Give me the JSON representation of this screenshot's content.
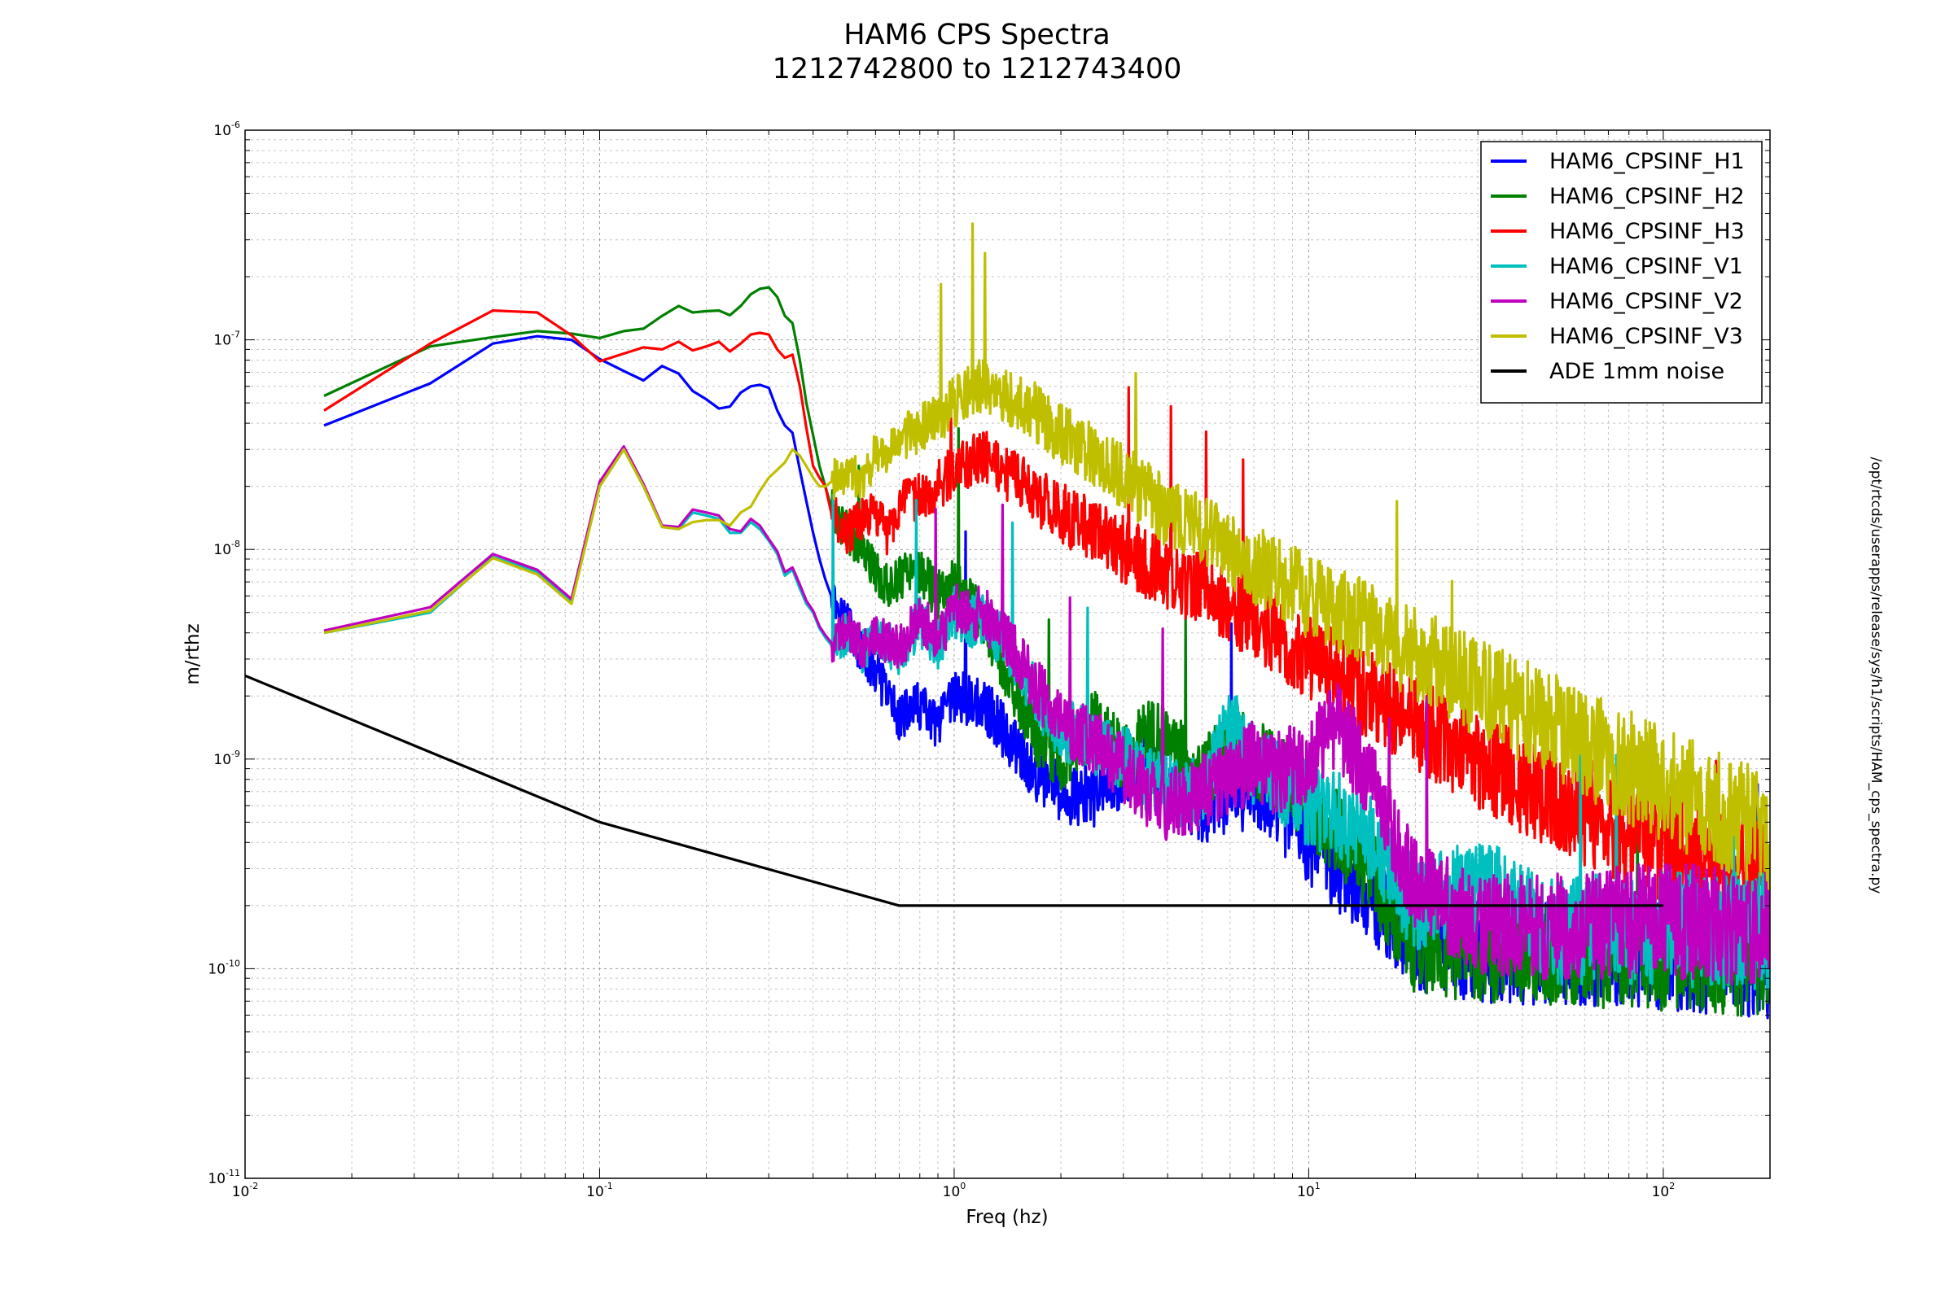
{
  "page": {
    "title_line1": "HAM6 CPS Spectra",
    "title_line2": "1212742800 to 1212743400",
    "side_note": "/opt/rtcds/userapps/release/sys/h1/scripts/HAM_cps_spectra.py"
  },
  "chart_data": {
    "type": "line",
    "title": "HAM6 CPS Spectra\n1212742800 to 1212743400",
    "xlabel": "Freq (hz)",
    "ylabel": "m/rthz",
    "xscale": "log",
    "yscale": "log",
    "xlim": [
      0.01,
      200
    ],
    "ylim": [
      1e-11,
      1e-06
    ],
    "grid": true,
    "legend_position": "top-right",
    "x_tick_labels": [
      {
        "value": 0.01,
        "base": "10",
        "exp": "-2"
      },
      {
        "value": 0.1,
        "base": "10",
        "exp": "-1"
      },
      {
        "value": 1,
        "base": "10",
        "exp": "0"
      },
      {
        "value": 10,
        "base": "10",
        "exp": "1"
      },
      {
        "value": 100,
        "base": "10",
        "exp": "2"
      }
    ],
    "y_tick_labels": [
      {
        "value": 1e-11,
        "base": "10",
        "exp": "-11"
      },
      {
        "value": 1e-10,
        "base": "10",
        "exp": "-10"
      },
      {
        "value": 1e-09,
        "base": "10",
        "exp": "-9"
      },
      {
        "value": 1e-08,
        "base": "10",
        "exp": "-8"
      },
      {
        "value": 1e-07,
        "base": "10",
        "exp": "-7"
      },
      {
        "value": 1e-06,
        "base": "10",
        "exp": "-6"
      }
    ],
    "series": [
      {
        "name": "HAM6_CPSINF_H1",
        "color": "#0000ff",
        "x": [
          0.0167,
          0.0333,
          0.05,
          0.0667,
          0.0833,
          0.1,
          0.117,
          0.133,
          0.15,
          0.167,
          0.183,
          0.2,
          0.217,
          0.233,
          0.25,
          0.267,
          0.283,
          0.3,
          0.317,
          0.333,
          0.35,
          0.367,
          0.383,
          0.4,
          0.417,
          0.433,
          0.45,
          0.5,
          0.55,
          0.6,
          0.65,
          0.7,
          0.8,
          0.9,
          1.0,
          1.1,
          1.2,
          1.3,
          1.5,
          1.7,
          2.0,
          2.5,
          3.0,
          3.5,
          4.0,
          5.0,
          6.0,
          7.0,
          8.0,
          10.0,
          12.0,
          15.0,
          20.0,
          30.0,
          50.0,
          100.0,
          150.0,
          200.0
        ],
        "y": [
          3.9e-08,
          6.2e-08,
          9.6e-08,
          1.04e-07,
          1e-07,
          8.1e-08,
          7.1e-08,
          6.4e-08,
          7.5e-08,
          6.9e-08,
          5.7e-08,
          5.2e-08,
          4.7e-08,
          4.8e-08,
          5.6e-08,
          6e-08,
          6.1e-08,
          5.9e-08,
          4.6e-08,
          3.9e-08,
          3.6e-08,
          2.4e-08,
          1.7e-08,
          1.2e-08,
          9e-09,
          7.2e-09,
          6e-09,
          4.5e-09,
          3.1e-09,
          2.6e-09,
          2e-09,
          1.6e-09,
          1.8e-09,
          1.4e-09,
          2e-09,
          1.9e-09,
          1.8e-09,
          1.6e-09,
          1.1e-09,
          8.5e-10,
          7e-10,
          6.5e-10,
          8.5e-10,
          1.1e-09,
          8e-10,
          6e-10,
          6.5e-10,
          7e-10,
          6e-10,
          4e-10,
          3e-10,
          2.2e-10,
          1.3e-10,
          1.2e-10,
          1.2e-10,
          1.2e-10,
          1.15e-10,
          1.1e-10
        ]
      },
      {
        "name": "HAM6_CPSINF_H2",
        "color": "#008000",
        "x": [
          0.0167,
          0.0333,
          0.05,
          0.0667,
          0.0833,
          0.1,
          0.117,
          0.133,
          0.15,
          0.167,
          0.183,
          0.2,
          0.217,
          0.233,
          0.25,
          0.267,
          0.283,
          0.3,
          0.317,
          0.333,
          0.35,
          0.367,
          0.383,
          0.4,
          0.417,
          0.433,
          0.45,
          0.5,
          0.55,
          0.6,
          0.65,
          0.7,
          0.8,
          0.9,
          1.0,
          1.1,
          1.2,
          1.3,
          1.5,
          1.7,
          2.0,
          2.5,
          3.0,
          3.5,
          4.0,
          5.0,
          6.0,
          7.0,
          8.0,
          10.0,
          12.0,
          15.0,
          20.0,
          30.0,
          50.0,
          100.0,
          150.0,
          200.0
        ],
        "y": [
          5.4e-08,
          9.3e-08,
          1.03e-07,
          1.1e-07,
          1.07e-07,
          1.02e-07,
          1.1e-07,
          1.13e-07,
          1.3e-07,
          1.45e-07,
          1.35e-07,
          1.37e-07,
          1.38e-07,
          1.31e-07,
          1.45e-07,
          1.65e-07,
          1.75e-07,
          1.78e-07,
          1.6e-07,
          1.3e-07,
          1.2e-07,
          8e-08,
          5e-08,
          3.5e-08,
          2.5e-08,
          2e-08,
          1.6e-08,
          1.2e-08,
          1e-08,
          8e-09,
          6.5e-09,
          7.5e-09,
          8e-09,
          6e-09,
          7e-09,
          5.5e-09,
          5e-09,
          3.5e-09,
          2e-09,
          1.3e-09,
          1e-09,
          1.5e-09,
          1e-09,
          1.3e-09,
          1.2e-09,
          8e-10,
          1.2e-09,
          1e-09,
          9e-10,
          6e-10,
          4.5e-10,
          3e-10,
          1.2e-10,
          1.2e-10,
          1.2e-10,
          1.2e-10,
          1.15e-10,
          1.1e-10
        ]
      },
      {
        "name": "HAM6_CPSINF_H3",
        "color": "#ff0000",
        "x": [
          0.0167,
          0.0333,
          0.05,
          0.0667,
          0.0833,
          0.1,
          0.117,
          0.133,
          0.15,
          0.167,
          0.183,
          0.2,
          0.217,
          0.233,
          0.25,
          0.267,
          0.283,
          0.3,
          0.317,
          0.333,
          0.35,
          0.367,
          0.383,
          0.4,
          0.417,
          0.433,
          0.45,
          0.5,
          0.55,
          0.6,
          0.65,
          0.7,
          0.8,
          0.9,
          1.0,
          1.1,
          1.2,
          1.3,
          1.5,
          1.7,
          2.0,
          2.5,
          3.0,
          3.5,
          4.0,
          5.0,
          6.0,
          7.0,
          8.0,
          10.0,
          12.0,
          15.0,
          20.0,
          30.0,
          50.0,
          100.0,
          150.0,
          200.0
        ],
        "y": [
          4.6e-08,
          9.6e-08,
          1.38e-07,
          1.35e-07,
          1.05e-07,
          7.9e-08,
          8.6e-08,
          9.2e-08,
          9e-08,
          9.8e-08,
          8.9e-08,
          9.3e-08,
          9.8e-08,
          8.8e-08,
          9.6e-08,
          1.06e-07,
          1.08e-07,
          1.06e-07,
          9e-08,
          8.2e-08,
          8.5e-08,
          6e-08,
          3.8e-08,
          2.5e-08,
          2.2e-08,
          2e-08,
          1.5e-08,
          1.2e-08,
          1.4e-08,
          1.5e-08,
          1.2e-08,
          1.6e-08,
          1.8e-08,
          2e-08,
          2.4e-08,
          2.6e-08,
          2.8e-08,
          2.5e-08,
          2.2e-08,
          1.8e-08,
          1.5e-08,
          1.2e-08,
          1e-08,
          8.5e-09,
          7.5e-09,
          6.5e-09,
          5.5e-09,
          4.5e-09,
          4e-09,
          3e-09,
          2.6e-09,
          2e-09,
          1.5e-09,
          1e-09,
          6.5e-10,
          3.8e-10,
          3e-10,
          2.5e-10
        ]
      },
      {
        "name": "HAM6_CPSINF_V1",
        "color": "#00bfbf",
        "x": [
          0.0167,
          0.0333,
          0.05,
          0.0667,
          0.0833,
          0.1,
          0.117,
          0.133,
          0.15,
          0.167,
          0.183,
          0.2,
          0.217,
          0.233,
          0.25,
          0.267,
          0.283,
          0.3,
          0.317,
          0.333,
          0.35,
          0.367,
          0.383,
          0.4,
          0.417,
          0.433,
          0.45,
          0.5,
          0.55,
          0.6,
          0.65,
          0.7,
          0.8,
          0.9,
          1.0,
          1.1,
          1.2,
          1.3,
          1.5,
          1.7,
          2.0,
          2.5,
          3.0,
          3.5,
          4.0,
          5.0,
          6.0,
          7.0,
          8.0,
          10.0,
          12.0,
          15.0,
          20.0,
          30.0,
          50.0,
          100.0,
          150.0,
          200.0
        ],
        "y": [
          4e-09,
          5e-09,
          9.2e-09,
          7.8e-09,
          5.6e-09,
          2e-08,
          3e-08,
          2e-08,
          1.28e-08,
          1.25e-08,
          1.5e-08,
          1.45e-08,
          1.4e-08,
          1.2e-08,
          1.2e-08,
          1.35e-08,
          1.25e-08,
          1.1e-08,
          9.5e-09,
          7.5e-09,
          8e-09,
          6.5e-09,
          5.5e-09,
          5e-09,
          4.2e-09,
          3.8e-09,
          3.5e-09,
          4e-09,
          3.2e-09,
          3.8e-09,
          3.5e-09,
          3.2e-09,
          4.5e-09,
          3.5e-09,
          5e-09,
          4.5e-09,
          4.8e-09,
          4e-09,
          3e-09,
          2e-09,
          1.4e-09,
          1.2e-09,
          1e-09,
          8e-10,
          7e-10,
          7e-10,
          1.5e-09,
          9e-10,
          8e-10,
          6e-10,
          5.5e-10,
          4e-10,
          2e-10,
          2.5e-10,
          1.5e-10,
          1.6e-10,
          1.5e-10,
          1.5e-10
        ]
      },
      {
        "name": "HAM6_CPSINF_V2",
        "color": "#bf00bf",
        "x": [
          0.0167,
          0.0333,
          0.05,
          0.0667,
          0.0833,
          0.1,
          0.117,
          0.133,
          0.15,
          0.167,
          0.183,
          0.2,
          0.217,
          0.233,
          0.25,
          0.267,
          0.283,
          0.3,
          0.317,
          0.333,
          0.35,
          0.367,
          0.383,
          0.4,
          0.417,
          0.433,
          0.45,
          0.5,
          0.55,
          0.6,
          0.65,
          0.7,
          0.8,
          0.9,
          1.0,
          1.1,
          1.2,
          1.3,
          1.5,
          1.7,
          2.0,
          2.5,
          3.0,
          3.5,
          4.0,
          5.0,
          6.0,
          7.0,
          8.0,
          10.0,
          12.0,
          15.0,
          20.0,
          30.0,
          50.0,
          100.0,
          150.0,
          200.0
        ],
        "y": [
          4.1e-09,
          5.3e-09,
          9.5e-09,
          8e-09,
          5.8e-09,
          2.1e-08,
          3.1e-08,
          2.05e-08,
          1.3e-08,
          1.28e-08,
          1.55e-08,
          1.5e-08,
          1.45e-08,
          1.25e-08,
          1.22e-08,
          1.4e-08,
          1.3e-08,
          1.12e-08,
          9.8e-09,
          7.8e-09,
          8.2e-09,
          6.8e-09,
          5.7e-09,
          5.1e-09,
          4.3e-09,
          3.9e-09,
          3.6e-09,
          4.2e-09,
          3.4e-09,
          4e-09,
          3.6e-09,
          3.4e-09,
          4.8e-09,
          3.7e-09,
          5.2e-09,
          4.8e-09,
          5e-09,
          4.3e-09,
          3.2e-09,
          2.2e-09,
          1.5e-09,
          1.2e-09,
          9e-10,
          7e-10,
          6e-10,
          7e-10,
          8e-10,
          1e-09,
          8.5e-10,
          1e-09,
          1.5e-09,
          8e-10,
          2.5e-10,
          1.6e-10,
          1.6e-10,
          1.7e-10,
          1.6e-10,
          1.5e-10
        ]
      },
      {
        "name": "HAM6_CPSINF_V3",
        "color": "#bfbf00",
        "x": [
          0.0167,
          0.0333,
          0.05,
          0.0667,
          0.0833,
          0.1,
          0.117,
          0.133,
          0.15,
          0.167,
          0.183,
          0.2,
          0.217,
          0.233,
          0.25,
          0.267,
          0.283,
          0.3,
          0.317,
          0.333,
          0.35,
          0.367,
          0.383,
          0.4,
          0.417,
          0.433,
          0.45,
          0.5,
          0.55,
          0.6,
          0.65,
          0.7,
          0.8,
          0.9,
          1.0,
          1.1,
          1.2,
          1.3,
          1.5,
          1.7,
          2.0,
          2.5,
          3.0,
          3.5,
          4.0,
          5.0,
          6.0,
          7.0,
          8.0,
          10.0,
          12.0,
          15.0,
          20.0,
          30.0,
          50.0,
          100.0,
          150.0,
          200.0
        ],
        "y": [
          4e-09,
          5.1e-09,
          9.1e-09,
          7.6e-09,
          5.5e-09,
          2e-08,
          3e-08,
          2e-08,
          1.28e-08,
          1.25e-08,
          1.35e-08,
          1.38e-08,
          1.38e-08,
          1.3e-08,
          1.5e-08,
          1.6e-08,
          1.9e-08,
          2.2e-08,
          2.4e-08,
          2.6e-08,
          3e-08,
          2.8e-08,
          2.5e-08,
          2.2e-08,
          2e-08,
          2e-08,
          2.1e-08,
          2.3e-08,
          2.2e-08,
          2.8e-08,
          3e-08,
          3.3e-08,
          3.8e-08,
          4.2e-08,
          5e-08,
          5.8e-08,
          6e-08,
          5.5e-08,
          5e-08,
          4.5e-08,
          3.5e-08,
          2.8e-08,
          2.2e-08,
          1.8e-08,
          1.5e-08,
          1.2e-08,
          1e-08,
          8.5e-09,
          7.5e-09,
          6e-09,
          5.2e-09,
          4.2e-09,
          3.2e-09,
          2.2e-09,
          1.4e-09,
          7.5e-10,
          5.5e-10,
          4.5e-10
        ]
      },
      {
        "name": "ADE 1mm noise",
        "color": "#000000",
        "x": [
          0.01,
          0.1,
          0.7,
          100.0
        ],
        "y": [
          2.5e-09,
          5e-10,
          2e-10,
          2e-10
        ]
      }
    ]
  }
}
